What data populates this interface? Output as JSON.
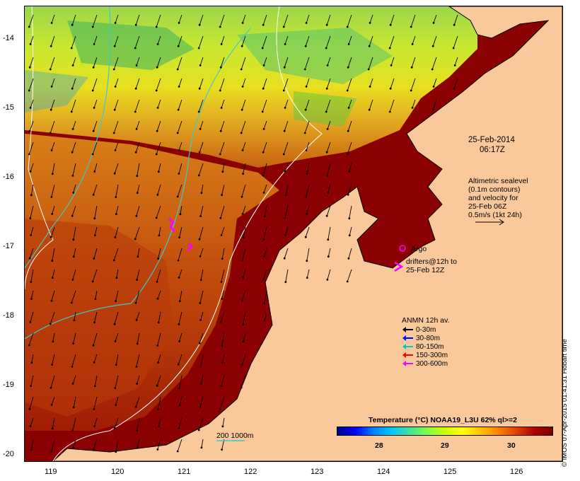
{
  "timestamp": {
    "line1": "25-Feb-2014",
    "line2": "06:17Z"
  },
  "altimetry_note": [
    "Altimetric sealevel",
    "(0.1m contours)",
    "and velocity for",
    "25-Feb 06Z",
    "0.5m/s (1kt 24h)"
  ],
  "argo_label": "Argo",
  "drifters_label": [
    "drifters@12h to",
    "25-Feb 12Z"
  ],
  "anmn": {
    "title": "ANMN 12h av.",
    "items": [
      {
        "label": "0-30m",
        "color": "#000000"
      },
      {
        "label": "30-80m",
        "color": "#0000ff"
      },
      {
        "label": "80-150m",
        "color": "#00c8c8"
      },
      {
        "label": "150-300m",
        "color": "#ff0000"
      },
      {
        "label": "300-600m",
        "color": "#ff00ff"
      }
    ]
  },
  "colorbar": {
    "title": "Temperature (°C) NOAA19_L3U 62% ql>=2",
    "ticks": [
      "28",
      "29",
      "30"
    ]
  },
  "isobath_label": "200  1000m",
  "credit": "© IMOS 07-Apr-2015 01:41:31 Hobart time",
  "axes": {
    "lat_ticks": [
      "-14",
      "-15",
      "-16",
      "-17",
      "-18",
      "-19",
      "-20"
    ],
    "lon_ticks": [
      "119",
      "120",
      "121",
      "122",
      "123",
      "124",
      "125",
      "126"
    ]
  }
}
